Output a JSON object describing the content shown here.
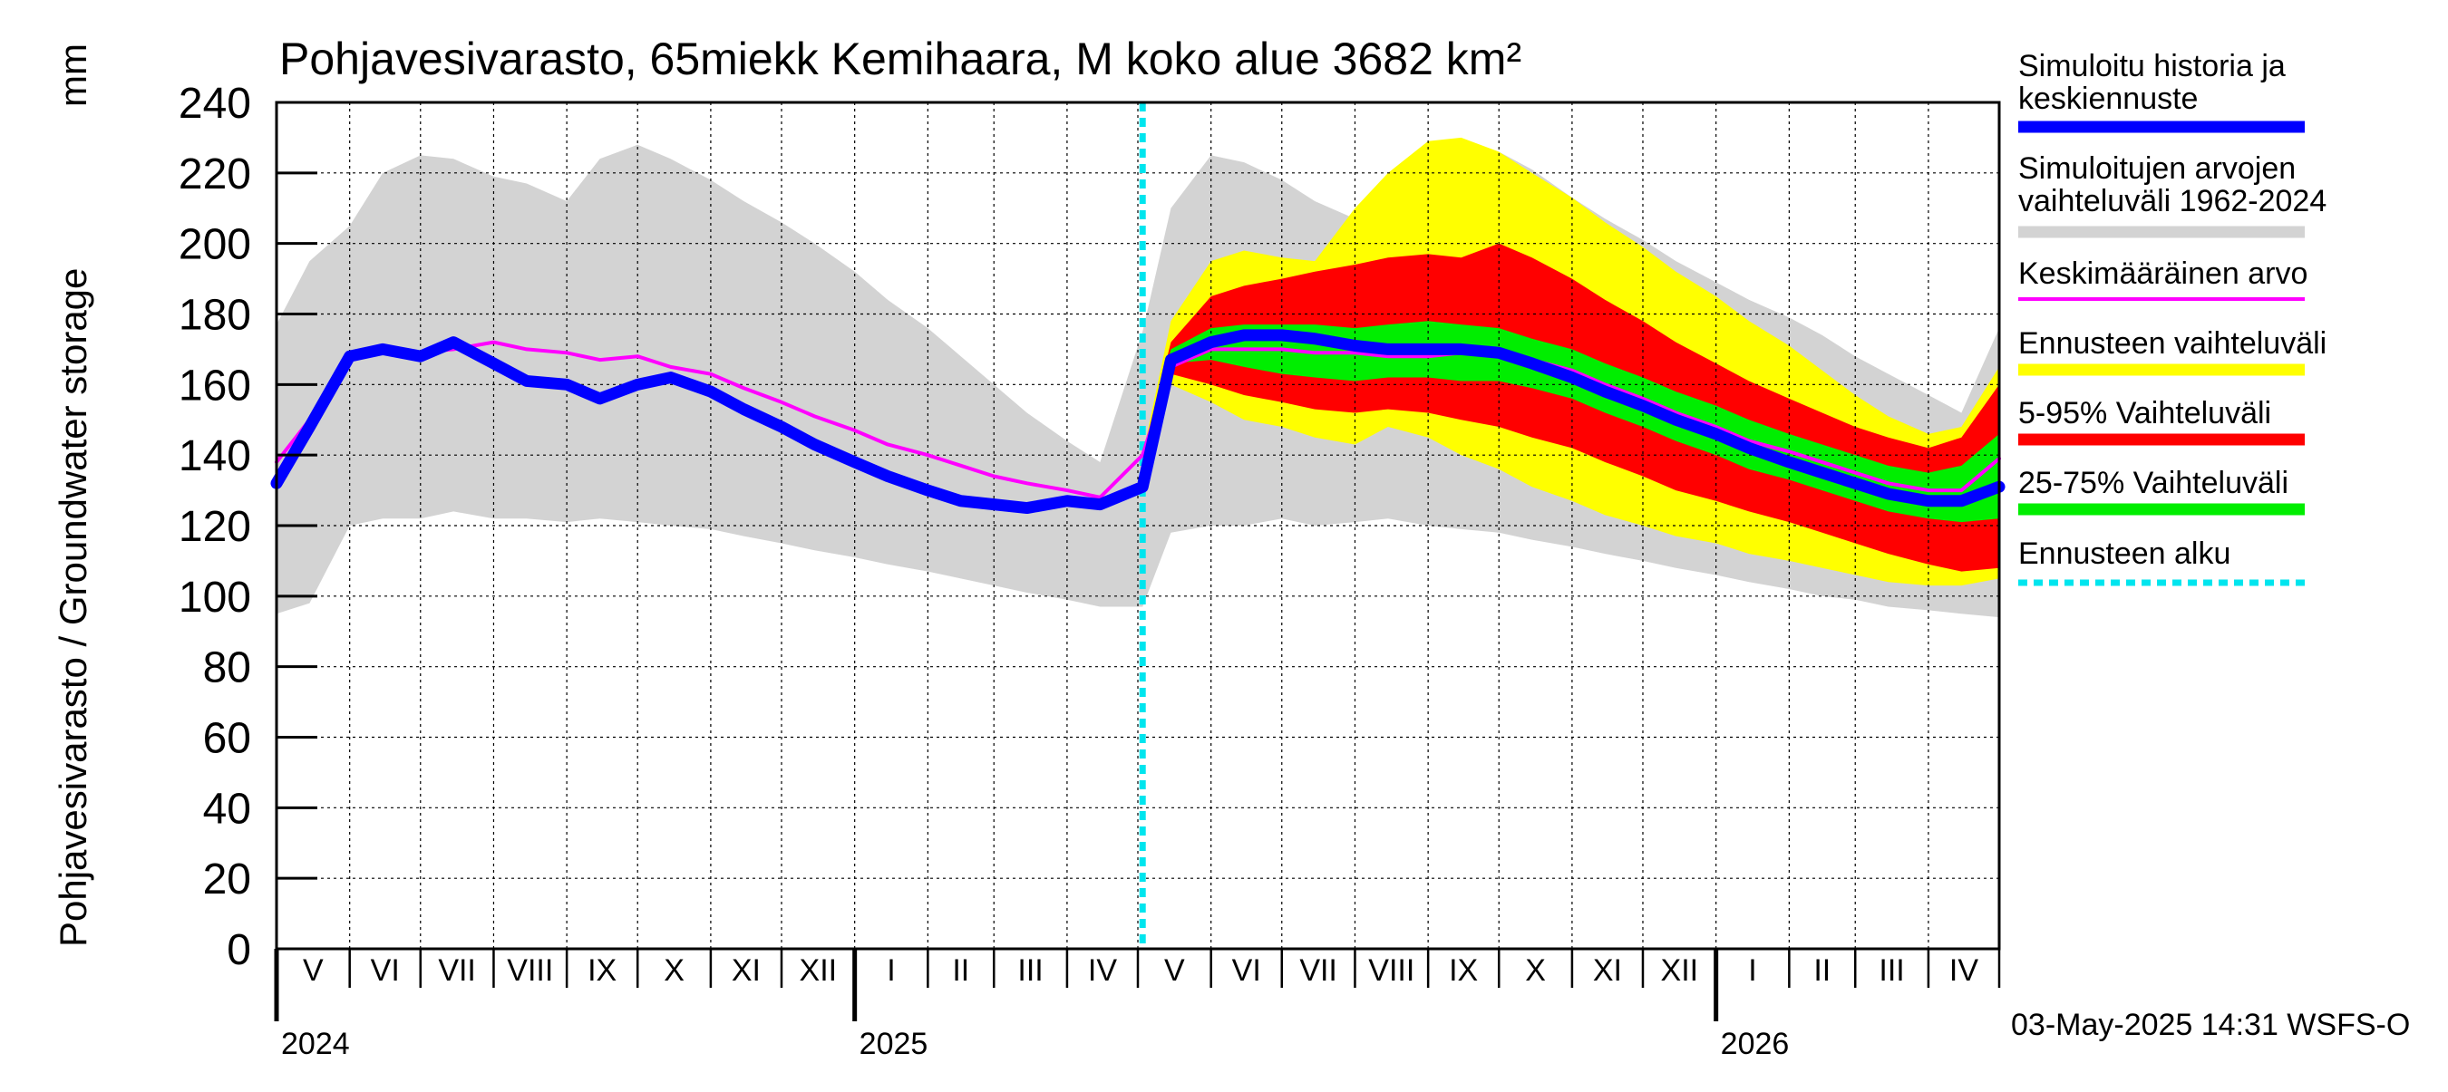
{
  "chart_data": {
    "type": "area",
    "title": "Pohjavesivarasto, 65miekk Kemihaara, M koko alue 3682 km²",
    "ylabel": "Pohjavesivarasto / Groundwater storage",
    "yunit": "mm",
    "ylim": [
      0,
      240
    ],
    "yticks": [
      0,
      20,
      40,
      60,
      80,
      100,
      120,
      140,
      160,
      180,
      200,
      220,
      240
    ],
    "grid": true,
    "forecast_start": "2025-05-03",
    "months": [
      {
        "label": "V",
        "start": "2024-05-01"
      },
      {
        "label": "VI",
        "start": "2024-06-01"
      },
      {
        "label": "VII",
        "start": "2024-07-01"
      },
      {
        "label": "VIII",
        "start": "2024-08-01"
      },
      {
        "label": "IX",
        "start": "2024-09-01"
      },
      {
        "label": "X",
        "start": "2024-10-01"
      },
      {
        "label": "XI",
        "start": "2024-11-01"
      },
      {
        "label": "XII",
        "start": "2024-12-01"
      },
      {
        "label": "I",
        "start": "2025-01-01"
      },
      {
        "label": "II",
        "start": "2025-02-01"
      },
      {
        "label": "III",
        "start": "2025-03-01"
      },
      {
        "label": "IV",
        "start": "2025-04-01"
      },
      {
        "label": "V",
        "start": "2025-05-01"
      },
      {
        "label": "VI",
        "start": "2025-06-01"
      },
      {
        "label": "VII",
        "start": "2025-07-01"
      },
      {
        "label": "VIII",
        "start": "2025-08-01"
      },
      {
        "label": "IX",
        "start": "2025-09-01"
      },
      {
        "label": "X",
        "start": "2025-10-01"
      },
      {
        "label": "XI",
        "start": "2025-11-01"
      },
      {
        "label": "XII",
        "start": "2025-12-01"
      },
      {
        "label": "I",
        "start": "2026-01-01"
      },
      {
        "label": "II",
        "start": "2026-02-01"
      },
      {
        "label": "III",
        "start": "2026-03-01"
      },
      {
        "label": "IV",
        "start": "2026-04-01"
      }
    ],
    "years": [
      {
        "label": "2024",
        "start": "2024-05-01"
      },
      {
        "label": "2025",
        "start": "2025-01-01"
      },
      {
        "label": "2026",
        "start": "2026-01-01"
      }
    ],
    "x": [
      "2024-05-01",
      "2024-05-15",
      "2024-06-01",
      "2024-06-15",
      "2024-07-01",
      "2024-07-15",
      "2024-08-01",
      "2024-08-15",
      "2024-09-01",
      "2024-09-15",
      "2024-10-01",
      "2024-10-15",
      "2024-11-01",
      "2024-11-15",
      "2024-12-01",
      "2024-12-15",
      "2025-01-01",
      "2025-01-15",
      "2025-02-01",
      "2025-02-15",
      "2025-03-01",
      "2025-03-15",
      "2025-04-01",
      "2025-04-15",
      "2025-05-03",
      "2025-05-15",
      "2025-06-01",
      "2025-06-15",
      "2025-07-01",
      "2025-07-15",
      "2025-08-01",
      "2025-08-15",
      "2025-09-01",
      "2025-09-15",
      "2025-10-01",
      "2025-10-15",
      "2025-11-01",
      "2025-11-15",
      "2025-12-01",
      "2025-12-15",
      "2026-01-01",
      "2026-01-15",
      "2026-02-01",
      "2026-02-15",
      "2026-03-01",
      "2026-03-15",
      "2026-04-01",
      "2026-04-15",
      "2026-05-01"
    ],
    "series": [
      {
        "name": "Simuloitujen arvojen vaihteluväli 1962-2024 (max)",
        "color": "#d3d3d3",
        "values": [
          177,
          195,
          205,
          220,
          225,
          224,
          219,
          217,
          212,
          224,
          228,
          224,
          218,
          212,
          206,
          200,
          192,
          184,
          176,
          168,
          160,
          152,
          144,
          138,
          175,
          210,
          225,
          223,
          218,
          212,
          207,
          212,
          220,
          222,
          226,
          221,
          213,
          207,
          201,
          195,
          189,
          184,
          179,
          174,
          168,
          163,
          157,
          152,
          176
        ]
      },
      {
        "name": "Simuloitujen arvojen vaihteluväli 1962-2024 (min)",
        "color": "#d3d3d3",
        "values": [
          95,
          98,
          120,
          122,
          122,
          124,
          122,
          122,
          121,
          122,
          121,
          120,
          119,
          117,
          115,
          113,
          111,
          109,
          107,
          105,
          103,
          101,
          99,
          97,
          97,
          118,
          120,
          120,
          122,
          120,
          121,
          122,
          120,
          119,
          118,
          116,
          114,
          112,
          110,
          108,
          106,
          104,
          102,
          100,
          99,
          97,
          96,
          95,
          94
        ]
      },
      {
        "name": "Ennusteen vaihteluväli (max)",
        "color": "#ffff00",
        "values": [
          null,
          null,
          null,
          null,
          null,
          null,
          null,
          null,
          null,
          null,
          null,
          null,
          null,
          null,
          null,
          null,
          null,
          null,
          null,
          null,
          null,
          null,
          null,
          null,
          140,
          178,
          195,
          198,
          196,
          195,
          210,
          220,
          229,
          230,
          226,
          220,
          213,
          206,
          199,
          192,
          185,
          178,
          171,
          164,
          157,
          151,
          146,
          148,
          165
        ]
      },
      {
        "name": "Ennusteen vaihteluväli (min)",
        "color": "#ffff00",
        "values": [
          null,
          null,
          null,
          null,
          null,
          null,
          null,
          null,
          null,
          null,
          null,
          null,
          null,
          null,
          null,
          null,
          null,
          null,
          null,
          null,
          null,
          null,
          null,
          null,
          140,
          160,
          155,
          150,
          148,
          145,
          143,
          148,
          145,
          140,
          136,
          131,
          127,
          123,
          120,
          117,
          115,
          112,
          110,
          108,
          106,
          104,
          103,
          103,
          105
        ]
      },
      {
        "name": "5-95% Vaihteluväli (max)",
        "color": "#ff0000",
        "values": [
          null,
          null,
          null,
          null,
          null,
          null,
          null,
          null,
          null,
          null,
          null,
          null,
          null,
          null,
          null,
          null,
          null,
          null,
          null,
          null,
          null,
          null,
          null,
          null,
          140,
          172,
          185,
          188,
          190,
          192,
          194,
          196,
          197,
          196,
          200,
          196,
          190,
          184,
          178,
          172,
          166,
          161,
          156,
          152,
          148,
          145,
          142,
          145,
          160
        ]
      },
      {
        "name": "5-95% Vaihteluväli (min)",
        "color": "#ff0000",
        "values": [
          null,
          null,
          null,
          null,
          null,
          null,
          null,
          null,
          null,
          null,
          null,
          null,
          null,
          null,
          null,
          null,
          null,
          null,
          null,
          null,
          null,
          null,
          null,
          null,
          140,
          163,
          160,
          157,
          155,
          153,
          152,
          153,
          152,
          150,
          148,
          145,
          142,
          138,
          134,
          130,
          127,
          124,
          121,
          118,
          115,
          112,
          109,
          107,
          108
        ]
      },
      {
        "name": "25-75% Vaihteluväli (max)",
        "color": "#00ee00",
        "values": [
          null,
          null,
          null,
          null,
          null,
          null,
          null,
          null,
          null,
          null,
          null,
          null,
          null,
          null,
          null,
          null,
          null,
          null,
          null,
          null,
          null,
          null,
          null,
          null,
          140,
          170,
          176,
          177,
          177,
          177,
          176,
          177,
          178,
          177,
          176,
          173,
          170,
          166,
          162,
          158,
          154,
          150,
          146,
          143,
          140,
          137,
          135,
          137,
          146
        ]
      },
      {
        "name": "25-75% Vaihteluväli (min)",
        "color": "#00ee00",
        "values": [
          null,
          null,
          null,
          null,
          null,
          null,
          null,
          null,
          null,
          null,
          null,
          null,
          null,
          null,
          null,
          null,
          null,
          null,
          null,
          null,
          null,
          null,
          null,
          null,
          140,
          166,
          167,
          165,
          163,
          162,
          161,
          162,
          162,
          161,
          161,
          159,
          156,
          152,
          148,
          144,
          140,
          136,
          133,
          130,
          127,
          124,
          122,
          121,
          122
        ]
      },
      {
        "name": "Keskimääräinen arvo",
        "color": "#ff00ff",
        "values": [
          138,
          150,
          168,
          170,
          169,
          170,
          172,
          170,
          169,
          167,
          168,
          165,
          163,
          159,
          155,
          151,
          147,
          143,
          140,
          137,
          134,
          132,
          130,
          128,
          140,
          165,
          170,
          170,
          170,
          169,
          169,
          168,
          168,
          169,
          169,
          167,
          164,
          160,
          156,
          152,
          148,
          144,
          141,
          138,
          135,
          132,
          130,
          130,
          139
        ]
      },
      {
        "name": "Simuloitu historia ja keskiennuste",
        "color": "#0000ff",
        "values": [
          132,
          148,
          168,
          170,
          168,
          172,
          166,
          161,
          160,
          156,
          160,
          162,
          158,
          153,
          148,
          143,
          138,
          134,
          130,
          127,
          126,
          125,
          127,
          126,
          131,
          167,
          172,
          174,
          174,
          173,
          171,
          170,
          170,
          170,
          169,
          166,
          162,
          158,
          154,
          150,
          146,
          142,
          138,
          135,
          132,
          129,
          127,
          127,
          131
        ]
      }
    ],
    "legend": [
      {
        "label": "Simuloitu historia ja keskiennuste",
        "color": "#0000ff",
        "style": "thick-line"
      },
      {
        "label": "Simuloitujen arvojen vaihteluväli 1962-2024",
        "color": "#d3d3d3",
        "style": "thick-line"
      },
      {
        "label": "Keskimääräinen arvo",
        "color": "#ff00ff",
        "style": "line"
      },
      {
        "label": "Ennusteen vaihteluväli",
        "color": "#ffff00",
        "style": "thick-line"
      },
      {
        "label": "5-95% Vaihteluväli",
        "color": "#ff0000",
        "style": "thick-line"
      },
      {
        "label": "25-75% Vaihteluväli",
        "color": "#00ee00",
        "style": "thick-line"
      },
      {
        "label": "Ennusteen alku",
        "color": "#00e5ee",
        "style": "dashed"
      }
    ],
    "legend_position": "right"
  },
  "footer": {
    "timestamp": "03-May-2025 14:31 WSFS-O"
  }
}
